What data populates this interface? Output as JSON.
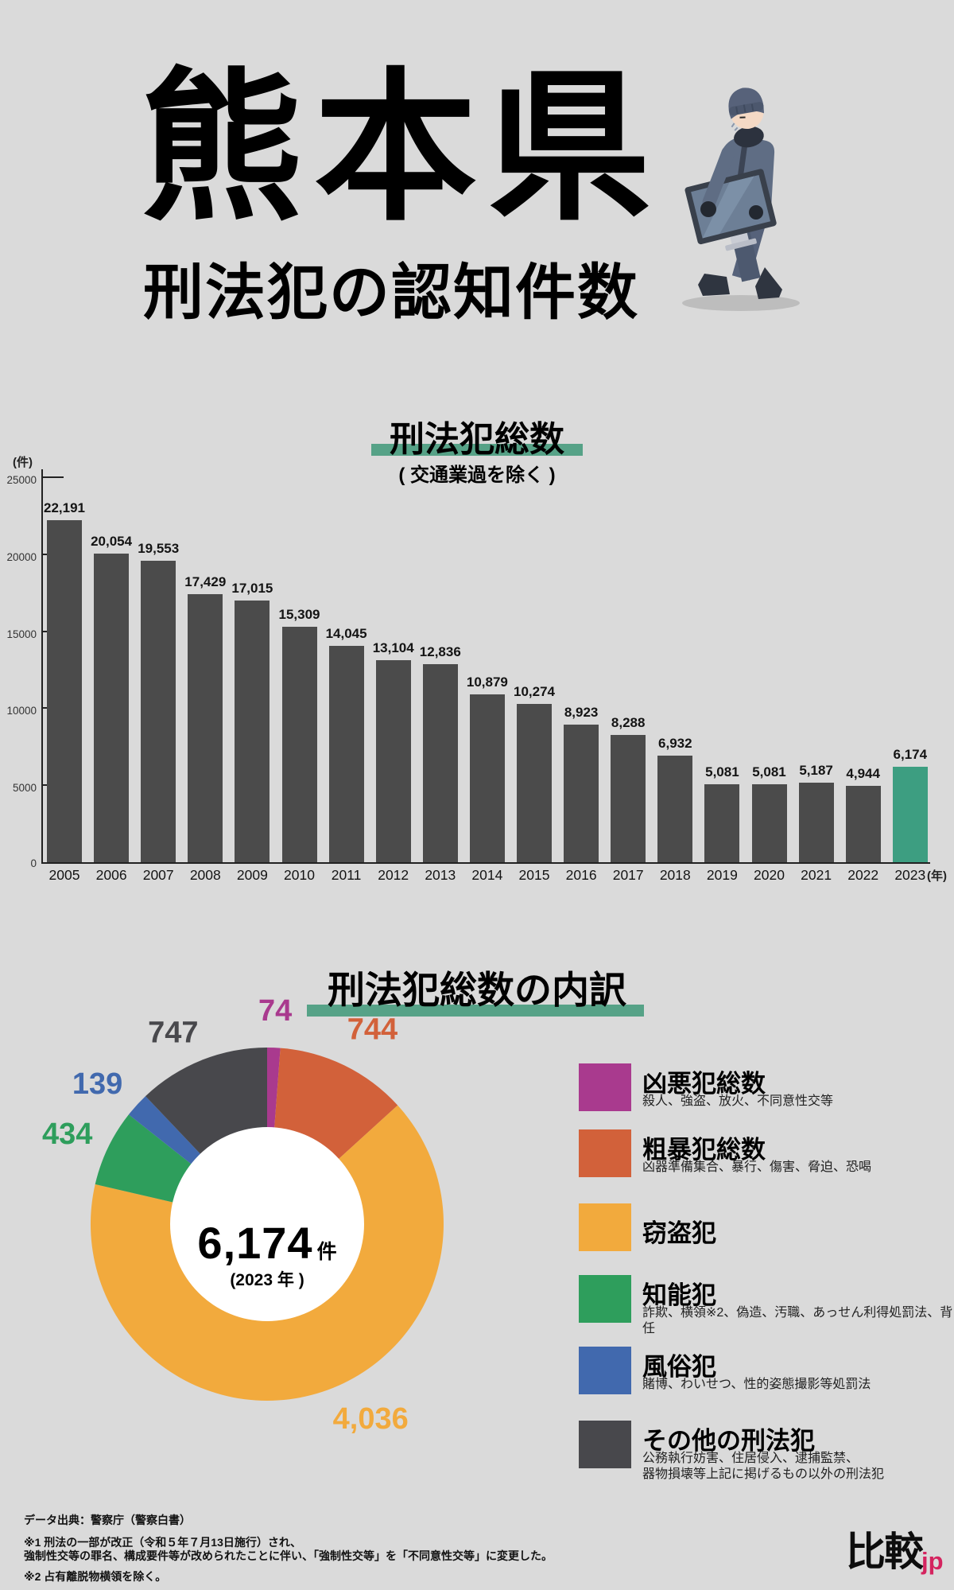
{
  "page": {
    "background": "#dadada"
  },
  "header": {
    "title": "熊本県",
    "subtitle": "刑法犯の認知件数"
  },
  "chart_data": [
    {
      "type": "bar",
      "title": "刑法犯総数",
      "subtitle": "( 交通業過を除く )",
      "unit_label": "(件)",
      "x_unit_label": "(年)",
      "categories": [
        "2005",
        "2006",
        "2007",
        "2008",
        "2009",
        "2010",
        "2011",
        "2012",
        "2013",
        "2014",
        "2015",
        "2016",
        "2017",
        "2018",
        "2019",
        "2020",
        "2021",
        "2022",
        "2023"
      ],
      "values": [
        22191,
        20054,
        19553,
        17429,
        17015,
        15309,
        14045,
        13104,
        12836,
        10879,
        10274,
        8923,
        8288,
        6932,
        5081,
        5081,
        5187,
        4944,
        6174
      ],
      "ylim": [
        0,
        25000
      ],
      "yticks": [
        0,
        5000,
        10000,
        15000,
        20000,
        25000
      ],
      "grid": false,
      "bar_color": "#4b4b4b",
      "highlight_category": "2023",
      "highlight_color": "#3d9e81",
      "value_labels": true
    },
    {
      "type": "pie",
      "title": "刑法犯総数の内訳",
      "total_label": "6,174",
      "total_unit": "件",
      "total_sublabel": "(2023 年 )",
      "slices": [
        {
          "label": "凶悪犯総数",
          "value": 74,
          "color": "#a93a8e"
        },
        {
          "label": "粗暴犯総数",
          "value": 744,
          "color": "#d2613a"
        },
        {
          "label": "窃盗犯",
          "value": 4036,
          "color": "#f2aa3d"
        },
        {
          "label": "知能犯",
          "value": 434,
          "color": "#2e9e5c"
        },
        {
          "label": "風俗犯",
          "value": 139,
          "color": "#4169ae"
        },
        {
          "label": "その他の刑法犯",
          "value": 747,
          "color": "#48484c"
        }
      ]
    }
  ],
  "legend": [
    {
      "title": "凶悪犯総数",
      "desc": "殺人、強盗、放火、不同意性交等",
      "color": "#a93a8e"
    },
    {
      "title": "粗暴犯総数",
      "desc": "凶器準備集合、暴行、傷害、脅迫、恐喝",
      "color": "#d2613a"
    },
    {
      "title": "窃盗犯",
      "desc": "",
      "color": "#f2aa3d"
    },
    {
      "title": "知能犯",
      "desc": "詐欺、横領※2、偽造、汚職、あっせん利得処罰法、背任",
      "color": "#2e9e5c"
    },
    {
      "title": "風俗犯",
      "desc": "賭博、わいせつ、性的姿態撮影等処罰法",
      "color": "#4169ae"
    },
    {
      "title": "その他の刑法犯",
      "desc": "公務執行妨害、住居侵入、逮捕監禁、\n器物損壊等上記に掲げるもの以外の刑法犯",
      "color": "#48484c"
    }
  ],
  "footer": {
    "source": "データ出典：警察庁（警察白書）",
    "note1_line1": "※1 刑法の一部が改正（令和５年７月13日施行）され、",
    "note1_line2": "強制性交等の罪名、構成要件等が改められたことに伴い、「強制性交等」を「不同意性交等」に変更した。",
    "note2": "※2 占有離脱物横領を除く。"
  },
  "logo": {
    "main": "比較",
    "sub": "jp",
    "sub_color": "#d4245f"
  }
}
